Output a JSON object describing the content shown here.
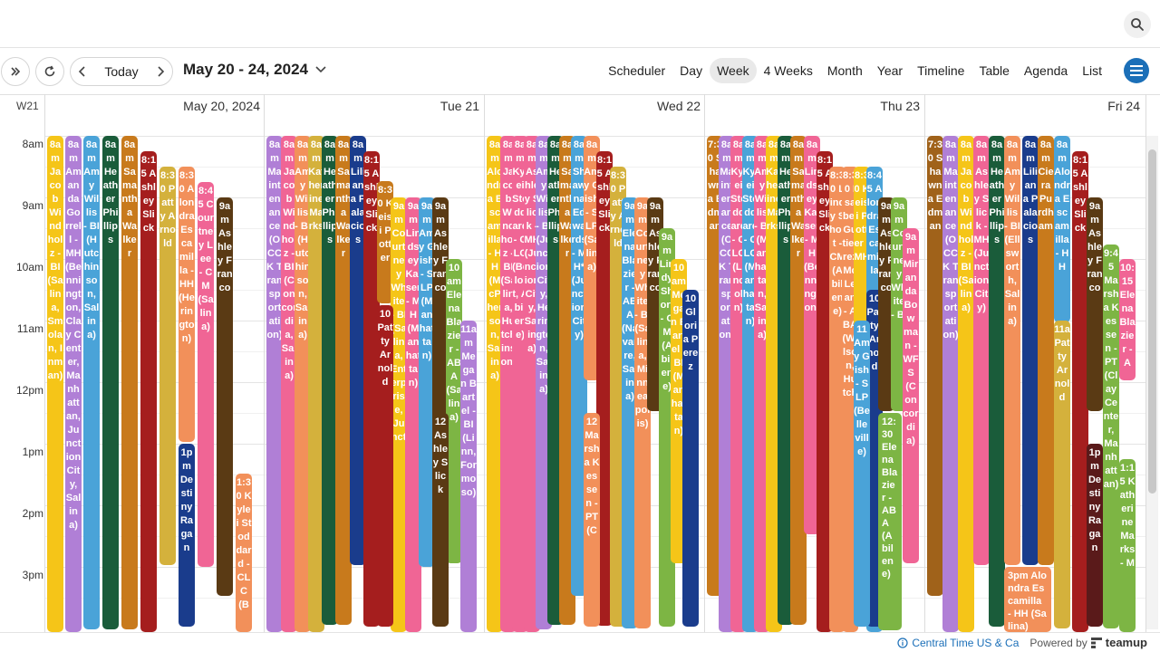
{
  "toolbar": {
    "today_label": "Today",
    "date_range": "May 20 - 24, 2024",
    "views": [
      "Scheduler",
      "Day",
      "Week",
      "4 Weeks",
      "Month",
      "Year",
      "Timeline",
      "Table",
      "Agenda",
      "List"
    ],
    "active_view": "Week"
  },
  "week_label": "W21",
  "days": [
    "May 20, 2024",
    "Tue 21",
    "Wed 22",
    "Thu 23",
    "Fri 24"
  ],
  "hours": [
    "8am",
    "9am",
    "10am",
    "11am",
    "12pm",
    "1pm",
    "2pm",
    "3pm"
  ],
  "events": {
    "mon": [
      {
        "color": "#f5c518",
        "text": "8am Jacob Windholz - BI (Salina, Smolan, Inman)"
      },
      {
        "color": "#b07fd6",
        "text": "8am Amanda Gorrell - MH (Bennington, Clay Center, Manhattan, Junction City, Salina)"
      },
      {
        "color": "#4aa3d8",
        "text": "8am Amy Willis - BI (Hutchinson, Salina)"
      },
      {
        "color": "#1a5c3a",
        "text": "8am Heather Phillips"
      },
      {
        "color": "#c87a1c",
        "text": "8am Samantha Walker"
      },
      {
        "color": "#a51e1e",
        "text": "8:15 Ashley Slick"
      },
      {
        "color": "#d4b13c",
        "text": "8:30 Patty Arnold"
      },
      {
        "color": "#f2905a",
        "text": "8:30 Alondra Escamilla - HH (Herington)"
      },
      {
        "color": "#f06595",
        "text": "8:45 Courtney Lee - CM (Salina)"
      },
      {
        "color": "#5a3a14",
        "text": "9am Ashley Franco"
      },
      {
        "color": "#1a3c8c",
        "text": "1pm Destiny Ragan"
      },
      {
        "color": "#f2905a",
        "text": "1:30 Kylei Stoddard - CLC (B"
      }
    ],
    "tue": [
      {
        "color": "#b07fd6",
        "text": "8am Maintenance (OCCK Transportation)"
      },
      {
        "color": "#f06595",
        "text": "8am Jacob Windholz - BI (Concordia, Salina)"
      },
      {
        "color": "#f2905a",
        "text": "8am Amy Willis - BI (Hutchinson, Salina)"
      },
      {
        "color": "#d4b13c",
        "text": "8am Katherine Marks"
      },
      {
        "color": "#1a5c3a",
        "text": "8am Heather Phillips"
      },
      {
        "color": "#c87a1c",
        "text": "8am Samantha Walker"
      },
      {
        "color": "#1a3c8c",
        "text": "8am Liliana Palacios"
      },
      {
        "color": "#a51e1e",
        "text": "8:15 Ashley Slick"
      },
      {
        "color": "#c87a1c",
        "text": "8:30 Keisi Potter"
      },
      {
        "color": "#f5c518",
        "text": "9am Courtney White - BI (Salina, Enterprise, Junct"
      },
      {
        "color": "#f06595",
        "text": "9am Lindsey Kaiser - MH (Manhattan)"
      },
      {
        "color": "#4aa3d8",
        "text": "9am Amy Gish - SLP (Manhattan)"
      },
      {
        "color": "#5a3a14",
        "text": "9am Ashley Franco"
      },
      {
        "color": "#7db544",
        "text": "10am Elena Blazier - ABA (Salina)"
      },
      {
        "color": "#b07fd6",
        "text": "11am Megan Bartel - BI (Linn, Formoso)"
      },
      {
        "color": "#a51e1e",
        "text": "10 Patty Arnold"
      },
      {
        "color": "#5a3a14",
        "text": "12 Ashley Slick"
      }
    ],
    "wed": [
      {
        "color": "#f5c518",
        "text": "8am Alondra Escamilla - HH (McPherson, Salina)"
      },
      {
        "color": "#f06595",
        "text": "8am Jacob Windholz - BI (Salina, Hutchinson)"
      },
      {
        "color": "#f06595",
        "text": "8am Kylei Stoddard - CLC (Beloit, Abilene)"
      },
      {
        "color": "#f06595",
        "text": "8am Ashley Slick - MH (Junction City, Salina)"
      },
      {
        "color": "#b07fd6",
        "text": "8am Amy Willis - BI (Junction City, Herington, Salina)"
      },
      {
        "color": "#1a5c3a",
        "text": "8am Heather Phillips"
      },
      {
        "color": "#c87a1c",
        "text": "8am Samantha Walker"
      },
      {
        "color": "#4aa3d8",
        "text": "8am Shawna Edwards - MH* (Junction City)"
      },
      {
        "color": "#f2905a",
        "text": "8am Amy Gish - SLP (Salina)"
      },
      {
        "color": "#a51e1e",
        "text": "8:15 Ashley Slick"
      },
      {
        "color": "#d4b13c",
        "text": "8:30 Patty Arnold"
      },
      {
        "color": "#4aa3d8",
        "text": "9am Elena Blazier - ABA (Navarre, Salina)"
      },
      {
        "color": "#f2905a",
        "text": "9am Courtney White - BI (Salina, Minneapolis)"
      },
      {
        "color": "#5a3a14",
        "text": "9am Ashley Franco"
      },
      {
        "color": "#7db544",
        "text": "9am Lindy Short - CM (Abilene)"
      },
      {
        "color": "#f5c518",
        "text": "10am Megan Bartel - BI (Manhattan)"
      },
      {
        "color": "#1a3c8c",
        "text": "10 Gloria Perez"
      },
      {
        "color": "#f2905a",
        "text": "12 Marsha Kessen - PT (C"
      }
    ],
    "thu": [
      {
        "color": "#c87a1c",
        "text": "7:30 Shawna Edman"
      },
      {
        "color": "#b07fd6",
        "text": "8am Maintenance (OCCK Transportation)"
      },
      {
        "color": "#f06595",
        "text": "8am Kylei Stoddard - CLC (Lincoln)"
      },
      {
        "color": "#4aa3d8",
        "text": "8am Kylei Stoddard - CLC (Manhattan)"
      },
      {
        "color": "#f06595",
        "text": "8am Amy Willis - BI (Manhattan, Salina)"
      },
      {
        "color": "#f5c518",
        "text": "8am Katherine Marks"
      },
      {
        "color": "#1a5c3a",
        "text": "8am Heather Phillips"
      },
      {
        "color": "#c87a1c",
        "text": "8am Samantha Walker"
      },
      {
        "color": "#f06595",
        "text": "8am Lindsey Kaiser - MH (Bennington)"
      },
      {
        "color": "#a51e1e",
        "text": "8:15 Ashley Slick"
      },
      {
        "color": "#f2905a",
        "text": "8:30 Lindy Short - CM (Abilene)"
      },
      {
        "color": "#f2905a",
        "text": "8:30 Isabel Gutierrez McLean - ABA (Wilson, Hutch"
      },
      {
        "color": "#f5c518",
        "text": "8:30 Keisi Potter - MH"
      },
      {
        "color": "#4aa3d8",
        "text": "8:45 Alondra Escamilla"
      },
      {
        "color": "#1a3c8c",
        "text": "10 Patty Arnold"
      },
      {
        "color": "#4aa3d8",
        "text": "11 Amy Gish - SLP (Belleville)"
      },
      {
        "color": "#5a3a14",
        "text": "9am Ashley Franco"
      },
      {
        "color": "#7db544",
        "text": "9am Courtney White - BI"
      },
      {
        "color": "#f06595",
        "text": "9am Miranda Bowman - WFS (Concordia)"
      },
      {
        "color": "#7db544",
        "text": "12:30 Elena Blazier - ABA (Abilene)"
      }
    ],
    "fri": [
      {
        "color": "#a0621a",
        "text": "7:30 Shawna Edman"
      },
      {
        "color": "#b07fd6",
        "text": "8am Maintenance (OCCK Transportation)"
      },
      {
        "color": "#f5c518",
        "text": "8am Jacob Windholz - BI (Salina)"
      },
      {
        "color": "#f06595",
        "text": "8am Ashley Slick - MH (Junction City)"
      },
      {
        "color": "#1a5c3a",
        "text": "8am Heather Phillips"
      },
      {
        "color": "#f2905a",
        "text": "8am Amy Willis - BI (Ellsworth, Salina)"
      },
      {
        "color": "#1a3c8c",
        "text": "8am Liliana Palacios"
      },
      {
        "color": "#c87a1c",
        "text": "8am Ciera Purdham"
      },
      {
        "color": "#4aa3d8",
        "text": "8am Alondra Escamilla - HH"
      },
      {
        "color": "#a51e1e",
        "text": "8:15 Ashley Slick"
      },
      {
        "color": "#5a3a14",
        "text": "9am Ashley Franco"
      },
      {
        "color": "#d4b13c",
        "text": "11a Patty Arnold"
      },
      {
        "color": "#7db544",
        "text": "9:45 Marsha Kessen - PT (Clay Center, Manhattan)"
      },
      {
        "color": "#f06595",
        "text": "10:15 Elena Blazier - A"
      },
      {
        "color": "#5a1a1a",
        "text": "1pm Destiny Ragan"
      },
      {
        "color": "#7db544",
        "text": "1:15 Katherine Marks - M"
      },
      {
        "color": "#f2905a",
        "text": "3pm Alondra Escamilla - HH (Salina)"
      }
    ]
  },
  "footer": {
    "timezone": "Central Time US & Ca",
    "powered_by": "Powered by",
    "brand": "teamup"
  }
}
